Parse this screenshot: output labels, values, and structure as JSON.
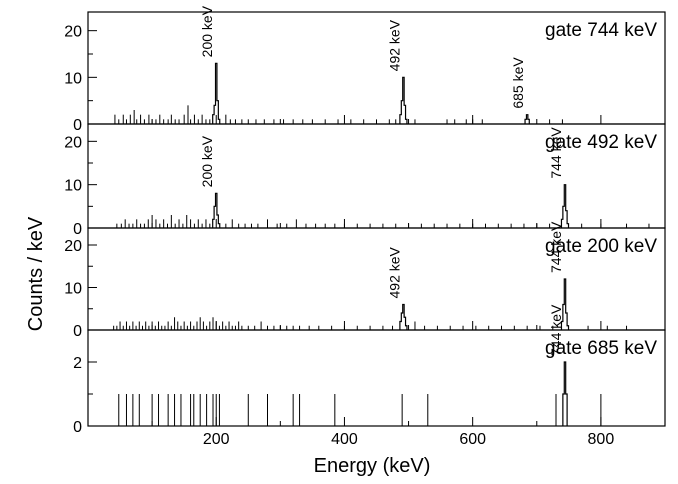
{
  "chart_data": {
    "type": "histogram",
    "xlabel": "Energy (keV)",
    "ylabel": "Counts / keV",
    "xlim": [
      0,
      900
    ],
    "x_ticks": [
      200,
      400,
      600,
      800
    ],
    "grid": false,
    "panels": [
      {
        "gate_label": "gate 744 keV",
        "ylim": [
          0,
          24
        ],
        "y_ticks": [
          0,
          10,
          20
        ],
        "peak_labels": [
          {
            "text": "200 keV",
            "x": 200
          },
          {
            "text": "492 keV",
            "x": 492
          },
          {
            "text": "685 keV",
            "x": 685
          }
        ],
        "peaks": [
          {
            "x": 200,
            "counts": [
              2,
              4,
              13,
              5,
              1
            ]
          },
          {
            "x": 492,
            "counts": [
              2,
              5,
              10,
              4,
              1
            ]
          },
          {
            "x": 685,
            "counts": [
              1,
              2,
              1
            ]
          }
        ],
        "background": [
          {
            "x": 42,
            "c": 2
          },
          {
            "x": 48,
            "c": 1
          },
          {
            "x": 55,
            "c": 2
          },
          {
            "x": 60,
            "c": 1
          },
          {
            "x": 66,
            "c": 2
          },
          {
            "x": 72,
            "c": 3
          },
          {
            "x": 76,
            "c": 1
          },
          {
            "x": 82,
            "c": 2
          },
          {
            "x": 88,
            "c": 1
          },
          {
            "x": 95,
            "c": 2
          },
          {
            "x": 100,
            "c": 1
          },
          {
            "x": 106,
            "c": 1
          },
          {
            "x": 112,
            "c": 2
          },
          {
            "x": 118,
            "c": 1
          },
          {
            "x": 125,
            "c": 1
          },
          {
            "x": 130,
            "c": 2
          },
          {
            "x": 136,
            "c": 1
          },
          {
            "x": 142,
            "c": 1
          },
          {
            "x": 150,
            "c": 2
          },
          {
            "x": 156,
            "c": 4
          },
          {
            "x": 160,
            "c": 1
          },
          {
            "x": 166,
            "c": 2
          },
          {
            "x": 172,
            "c": 1
          },
          {
            "x": 178,
            "c": 2
          },
          {
            "x": 184,
            "c": 1
          },
          {
            "x": 190,
            "c": 1
          },
          {
            "x": 215,
            "c": 2
          },
          {
            "x": 222,
            "c": 1
          },
          {
            "x": 230,
            "c": 1
          },
          {
            "x": 240,
            "c": 1
          },
          {
            "x": 250,
            "c": 1
          },
          {
            "x": 262,
            "c": 1
          },
          {
            "x": 275,
            "c": 1
          },
          {
            "x": 290,
            "c": 1
          },
          {
            "x": 305,
            "c": 1
          },
          {
            "x": 320,
            "c": 1
          },
          {
            "x": 335,
            "c": 1
          },
          {
            "x": 350,
            "c": 1
          },
          {
            "x": 370,
            "c": 1
          },
          {
            "x": 390,
            "c": 1
          },
          {
            "x": 410,
            "c": 1
          },
          {
            "x": 430,
            "c": 1
          },
          {
            "x": 450,
            "c": 1
          },
          {
            "x": 470,
            "c": 1
          },
          {
            "x": 480,
            "c": 1
          },
          {
            "x": 510,
            "c": 1
          },
          {
            "x": 560,
            "c": 1
          },
          {
            "x": 572,
            "c": 1
          },
          {
            "x": 590,
            "c": 1
          },
          {
            "x": 600,
            "c": 1
          },
          {
            "x": 615,
            "c": 1
          },
          {
            "x": 720,
            "c": 1
          },
          {
            "x": 740,
            "c": 1
          }
        ]
      },
      {
        "gate_label": "gate 492 keV",
        "ylim": [
          0,
          24
        ],
        "y_ticks": [
          0,
          10,
          20
        ],
        "peak_labels": [
          {
            "text": "200 keV",
            "x": 200
          },
          {
            "text": "744 keV",
            "x": 744
          }
        ],
        "peaks": [
          {
            "x": 200,
            "counts": [
              2,
              5,
              8,
              3,
              1
            ]
          },
          {
            "x": 744,
            "counts": [
              2,
              5,
              10,
              4,
              1
            ]
          }
        ],
        "background": [
          {
            "x": 45,
            "c": 1
          },
          {
            "x": 52,
            "c": 1
          },
          {
            "x": 58,
            "c": 2
          },
          {
            "x": 64,
            "c": 1
          },
          {
            "x": 70,
            "c": 1
          },
          {
            "x": 76,
            "c": 2
          },
          {
            "x": 82,
            "c": 1
          },
          {
            "x": 88,
            "c": 1
          },
          {
            "x": 94,
            "c": 2
          },
          {
            "x": 100,
            "c": 3
          },
          {
            "x": 106,
            "c": 2
          },
          {
            "x": 112,
            "c": 1
          },
          {
            "x": 118,
            "c": 2
          },
          {
            "x": 124,
            "c": 1
          },
          {
            "x": 130,
            "c": 3
          },
          {
            "x": 136,
            "c": 1
          },
          {
            "x": 142,
            "c": 2
          },
          {
            "x": 148,
            "c": 1
          },
          {
            "x": 154,
            "c": 3
          },
          {
            "x": 160,
            "c": 2
          },
          {
            "x": 166,
            "c": 1
          },
          {
            "x": 172,
            "c": 2
          },
          {
            "x": 178,
            "c": 1
          },
          {
            "x": 184,
            "c": 2
          },
          {
            "x": 190,
            "c": 1
          },
          {
            "x": 215,
            "c": 1
          },
          {
            "x": 225,
            "c": 2
          },
          {
            "x": 235,
            "c": 1
          },
          {
            "x": 245,
            "c": 1
          },
          {
            "x": 255,
            "c": 1
          },
          {
            "x": 265,
            "c": 1
          },
          {
            "x": 280,
            "c": 2
          },
          {
            "x": 295,
            "c": 1
          },
          {
            "x": 310,
            "c": 1
          },
          {
            "x": 325,
            "c": 2
          },
          {
            "x": 340,
            "c": 1
          },
          {
            "x": 355,
            "c": 1
          },
          {
            "x": 370,
            "c": 1
          },
          {
            "x": 385,
            "c": 1
          },
          {
            "x": 400,
            "c": 1
          },
          {
            "x": 420,
            "c": 1
          },
          {
            "x": 440,
            "c": 1
          },
          {
            "x": 460,
            "c": 1
          },
          {
            "x": 480,
            "c": 1
          },
          {
            "x": 500,
            "c": 1
          },
          {
            "x": 520,
            "c": 1
          },
          {
            "x": 540,
            "c": 1
          },
          {
            "x": 560,
            "c": 1
          },
          {
            "x": 580,
            "c": 1
          },
          {
            "x": 600,
            "c": 1
          },
          {
            "x": 620,
            "c": 1
          },
          {
            "x": 640,
            "c": 1
          },
          {
            "x": 660,
            "c": 1
          },
          {
            "x": 680,
            "c": 1
          },
          {
            "x": 700,
            "c": 1
          },
          {
            "x": 720,
            "c": 1
          },
          {
            "x": 770,
            "c": 1
          },
          {
            "x": 800,
            "c": 1
          },
          {
            "x": 840,
            "c": 1
          },
          {
            "x": 875,
            "c": 1
          }
        ]
      },
      {
        "gate_label": "gate 200 keV",
        "ylim": [
          0,
          24
        ],
        "y_ticks": [
          0,
          10,
          20
        ],
        "peak_labels": [
          {
            "text": "492 keV",
            "x": 492
          },
          {
            "text": "744 keV",
            "x": 744
          }
        ],
        "peaks": [
          {
            "x": 492,
            "counts": [
              2,
              4,
              6,
              3,
              1
            ]
          },
          {
            "x": 744,
            "counts": [
              2,
              6,
              12,
              4,
              1
            ]
          }
        ],
        "background": [
          {
            "x": 40,
            "c": 1
          },
          {
            "x": 45,
            "c": 1
          },
          {
            "x": 50,
            "c": 2
          },
          {
            "x": 55,
            "c": 1
          },
          {
            "x": 60,
            "c": 2
          },
          {
            "x": 65,
            "c": 1
          },
          {
            "x": 70,
            "c": 2
          },
          {
            "x": 75,
            "c": 1
          },
          {
            "x": 80,
            "c": 2
          },
          {
            "x": 85,
            "c": 1
          },
          {
            "x": 90,
            "c": 2
          },
          {
            "x": 95,
            "c": 1
          },
          {
            "x": 100,
            "c": 2
          },
          {
            "x": 105,
            "c": 1
          },
          {
            "x": 110,
            "c": 2
          },
          {
            "x": 115,
            "c": 1
          },
          {
            "x": 120,
            "c": 1
          },
          {
            "x": 125,
            "c": 2
          },
          {
            "x": 130,
            "c": 1
          },
          {
            "x": 135,
            "c": 3
          },
          {
            "x": 140,
            "c": 2
          },
          {
            "x": 145,
            "c": 1
          },
          {
            "x": 150,
            "c": 2
          },
          {
            "x": 155,
            "c": 1
          },
          {
            "x": 160,
            "c": 2
          },
          {
            "x": 165,
            "c": 1
          },
          {
            "x": 170,
            "c": 2
          },
          {
            "x": 175,
            "c": 3
          },
          {
            "x": 180,
            "c": 2
          },
          {
            "x": 185,
            "c": 1
          },
          {
            "x": 190,
            "c": 2
          },
          {
            "x": 195,
            "c": 3
          },
          {
            "x": 200,
            "c": 2
          },
          {
            "x": 205,
            "c": 1
          },
          {
            "x": 210,
            "c": 2
          },
          {
            "x": 215,
            "c": 1
          },
          {
            "x": 220,
            "c": 2
          },
          {
            "x": 225,
            "c": 1
          },
          {
            "x": 230,
            "c": 1
          },
          {
            "x": 235,
            "c": 2
          },
          {
            "x": 240,
            "c": 1
          },
          {
            "x": 250,
            "c": 1
          },
          {
            "x": 260,
            "c": 1
          },
          {
            "x": 270,
            "c": 2
          },
          {
            "x": 280,
            "c": 1
          },
          {
            "x": 290,
            "c": 1
          },
          {
            "x": 300,
            "c": 1
          },
          {
            "x": 310,
            "c": 1
          },
          {
            "x": 320,
            "c": 1
          },
          {
            "x": 330,
            "c": 1
          },
          {
            "x": 345,
            "c": 1
          },
          {
            "x": 360,
            "c": 1
          },
          {
            "x": 380,
            "c": 1
          },
          {
            "x": 400,
            "c": 1
          },
          {
            "x": 420,
            "c": 1
          },
          {
            "x": 440,
            "c": 1
          },
          {
            "x": 460,
            "c": 1
          },
          {
            "x": 475,
            "c": 1
          },
          {
            "x": 510,
            "c": 2
          },
          {
            "x": 525,
            "c": 1
          },
          {
            "x": 545,
            "c": 1
          },
          {
            "x": 565,
            "c": 1
          },
          {
            "x": 585,
            "c": 1
          },
          {
            "x": 605,
            "c": 1
          },
          {
            "x": 625,
            "c": 1
          },
          {
            "x": 645,
            "c": 1
          },
          {
            "x": 665,
            "c": 1
          },
          {
            "x": 685,
            "c": 1
          },
          {
            "x": 705,
            "c": 1
          },
          {
            "x": 725,
            "c": 1
          },
          {
            "x": 780,
            "c": 1
          },
          {
            "x": 810,
            "c": 1
          },
          {
            "x": 840,
            "c": 1
          }
        ]
      },
      {
        "gate_label": "gate 685 keV",
        "ylim": [
          0,
          3
        ],
        "y_ticks": [
          0,
          2
        ],
        "peak_labels": [
          {
            "text": "744 keV",
            "x": 744
          }
        ],
        "peaks": [
          {
            "x": 744,
            "counts": [
              1,
              2,
              1
            ]
          }
        ],
        "background": [
          {
            "x": 48,
            "c": 1
          },
          {
            "x": 60,
            "c": 1
          },
          {
            "x": 70,
            "c": 1
          },
          {
            "x": 80,
            "c": 1
          },
          {
            "x": 100,
            "c": 1
          },
          {
            "x": 110,
            "c": 1
          },
          {
            "x": 125,
            "c": 1
          },
          {
            "x": 135,
            "c": 1
          },
          {
            "x": 145,
            "c": 1
          },
          {
            "x": 160,
            "c": 1
          },
          {
            "x": 165,
            "c": 1
          },
          {
            "x": 175,
            "c": 1
          },
          {
            "x": 185,
            "c": 1
          },
          {
            "x": 195,
            "c": 1
          },
          {
            "x": 200,
            "c": 1
          },
          {
            "x": 205,
            "c": 1
          },
          {
            "x": 250,
            "c": 1
          },
          {
            "x": 280,
            "c": 1
          },
          {
            "x": 320,
            "c": 1
          },
          {
            "x": 330,
            "c": 1
          },
          {
            "x": 385,
            "c": 1
          },
          {
            "x": 490,
            "c": 1
          },
          {
            "x": 530,
            "c": 1
          },
          {
            "x": 730,
            "c": 1
          },
          {
            "x": 800,
            "c": 1
          }
        ]
      }
    ]
  }
}
